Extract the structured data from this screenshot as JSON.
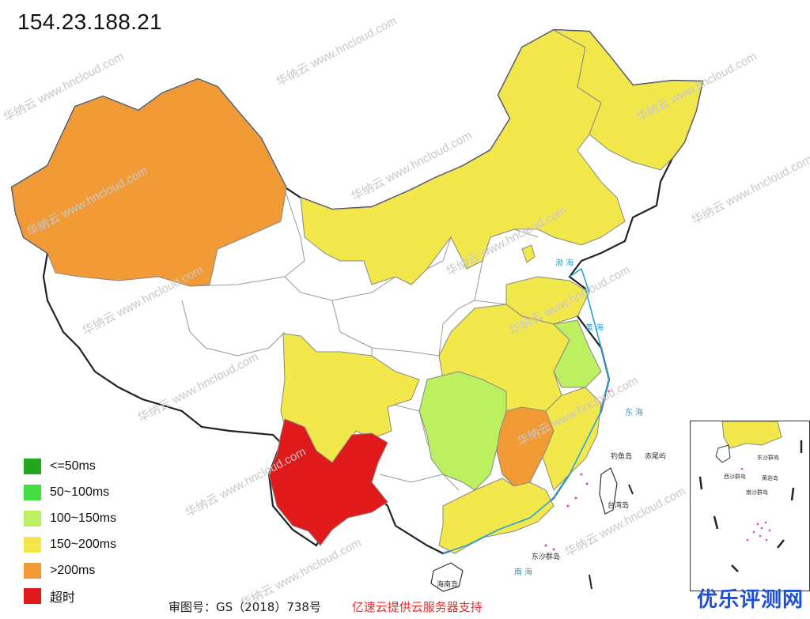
{
  "header": {
    "ip": "154.23.188.21"
  },
  "legend": [
    {
      "label": "<=50ms",
      "color": "#22a71f"
    },
    {
      "label": "50~100ms",
      "color": "#44dd44"
    },
    {
      "label": "100~150ms",
      "color": "#bdf060"
    },
    {
      "label": "150~200ms",
      "color": "#f2e84b"
    },
    {
      "label": ">200ms",
      "color": "#f29a36"
    },
    {
      "label": "超时",
      "color": "#e0191a"
    }
  ],
  "colors": {
    "no_data": "#ffffff",
    "border": "#888888",
    "sea": "#2aa0d8"
  },
  "regions": [
    {
      "name": "新疆",
      "level": ">200ms"
    },
    {
      "name": "内蒙古",
      "level": "150~200ms"
    },
    {
      "name": "黑龙江",
      "level": "150~200ms"
    },
    {
      "name": "四川",
      "level": "150~200ms"
    },
    {
      "name": "云南",
      "level": "超时"
    },
    {
      "name": "湖南",
      "level": "100~150ms"
    },
    {
      "name": "江西",
      "level": ">200ms"
    },
    {
      "name": "江苏",
      "level": "100~150ms"
    },
    {
      "name": "广东",
      "level": "150~200ms"
    }
  ],
  "map_labels": {
    "bohai": "渤 海",
    "yellow_sea": "黄 海",
    "east_sea": "东 海",
    "south_sea": "南 海",
    "taiwan": "台湾岛",
    "hainan": "海南岛",
    "dongsha": "东沙群岛",
    "diaoyu": "钓鱼岛",
    "chiwei": "赤尾屿"
  },
  "inset_labels": {
    "dongsha": "东沙群岛",
    "xisha": "西沙群岛",
    "nansha": "南沙群岛",
    "huangyan": "黄岩岛"
  },
  "footer": {
    "approval": "审图号：GS（2018）738号",
    "credit": "亿速云提供云服务器支持"
  },
  "watermark_text": "华纳云 www.hncloud.com",
  "brand": "优乐评测网"
}
